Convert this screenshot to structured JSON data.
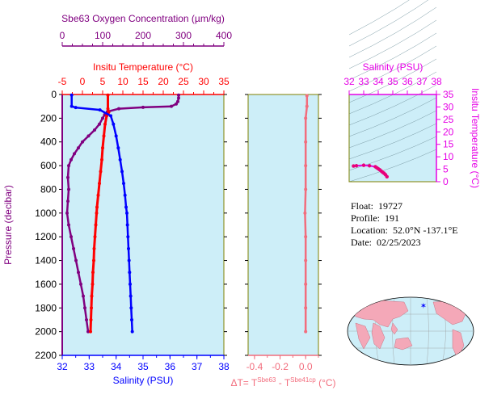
{
  "colors": {
    "panel_bg": "#cdeef8",
    "oxygen": "#800080",
    "temperature": "#ff0000",
    "salinity": "#0000ff",
    "delta": "#f26d7d",
    "ts_axis": "#e600e6",
    "axis": "#000000",
    "frame": "#808000"
  },
  "info": {
    "float_label": "Float:",
    "float_value": "19727",
    "profile_label": "Profile:",
    "profile_value": "191",
    "location_label": "Location:",
    "location_value": "52.0°N  -137.1°E",
    "date_label": "Date:",
    "date_value": "02/25/2023"
  },
  "chart_data": [
    {
      "type": "line",
      "title": "",
      "ylabel": "Pressure (decibar)",
      "ylim": [
        0,
        2200
      ],
      "y_ticks": [
        "0",
        "200",
        "400",
        "600",
        "800",
        "1000",
        "1200",
        "1400",
        "1600",
        "1800",
        "2000",
        "2200"
      ],
      "axes": {
        "oxygen": {
          "label": "Sbe63 Oxygen Concentration (µm/kg)",
          "range": [
            0,
            400
          ],
          "ticks": [
            "0",
            "100",
            "200",
            "300",
            "400"
          ]
        },
        "temperature": {
          "label": "Insitu Temperature (°C)",
          "range": [
            -5,
            35
          ],
          "ticks": [
            "-5",
            "0",
            "5",
            "10",
            "15",
            "20",
            "25",
            "30",
            "35"
          ]
        },
        "salinity": {
          "label": "Salinity (PSU)",
          "range": [
            32,
            38
          ],
          "ticks": [
            "32",
            "33",
            "34",
            "35",
            "36",
            "37",
            "38"
          ]
        }
      },
      "series": [
        {
          "name": "Oxygen",
          "axis": "oxygen",
          "points": [
            [
              288,
              5
            ],
            [
              288,
              30
            ],
            [
              286,
              60
            ],
            [
              282,
              80
            ],
            [
              270,
              100
            ],
            [
              200,
              108
            ],
            [
              140,
              120
            ],
            [
              112,
              145
            ],
            [
              105,
              170
            ],
            [
              100,
              200
            ],
            [
              92,
              250
            ],
            [
              80,
              300
            ],
            [
              65,
              350
            ],
            [
              50,
              400
            ],
            [
              40,
              450
            ],
            [
              30,
              500
            ],
            [
              22,
              550
            ],
            [
              16,
              600
            ],
            [
              14,
              700
            ],
            [
              16,
              800
            ],
            [
              14,
              900
            ],
            [
              12,
              1000
            ],
            [
              16,
              1100
            ],
            [
              22,
              1200
            ],
            [
              28,
              1300
            ],
            [
              34,
              1400
            ],
            [
              40,
              1500
            ],
            [
              46,
              1600
            ],
            [
              52,
              1700
            ],
            [
              56,
              1800
            ],
            [
              60,
              1900
            ],
            [
              64,
              2000
            ]
          ]
        },
        {
          "name": "Temperature",
          "axis": "temperature",
          "points": [
            [
              6.3,
              5
            ],
            [
              6.3,
              120
            ],
            [
              6.5,
              150
            ],
            [
              6.0,
              180
            ],
            [
              5.6,
              250
            ],
            [
              5.3,
              350
            ],
            [
              5.0,
              450
            ],
            [
              4.8,
              550
            ],
            [
              4.5,
              650
            ],
            [
              4.2,
              750
            ],
            [
              3.9,
              850
            ],
            [
              3.6,
              950
            ],
            [
              3.5,
              1000
            ],
            [
              3.3,
              1100
            ],
            [
              3.1,
              1200
            ],
            [
              2.9,
              1300
            ],
            [
              2.8,
              1400
            ],
            [
              2.6,
              1500
            ],
            [
              2.5,
              1600
            ],
            [
              2.3,
              1700
            ],
            [
              2.2,
              1800
            ],
            [
              2.1,
              1900
            ],
            [
              2.0,
              2000
            ]
          ]
        },
        {
          "name": "Salinity",
          "axis": "salinity",
          "points": [
            [
              32.35,
              5
            ],
            [
              32.35,
              100
            ],
            [
              32.5,
              110
            ],
            [
              33.4,
              130
            ],
            [
              33.8,
              180
            ],
            [
              33.9,
              250
            ],
            [
              34.0,
              350
            ],
            [
              34.08,
              450
            ],
            [
              34.15,
              550
            ],
            [
              34.22,
              650
            ],
            [
              34.28,
              750
            ],
            [
              34.33,
              850
            ],
            [
              34.37,
              950
            ],
            [
              34.4,
              1000
            ],
            [
              34.42,
              1100
            ],
            [
              34.44,
              1200
            ],
            [
              34.46,
              1300
            ],
            [
              34.48,
              1400
            ],
            [
              34.5,
              1500
            ],
            [
              34.52,
              1600
            ],
            [
              34.54,
              1700
            ],
            [
              34.56,
              1800
            ],
            [
              34.58,
              1900
            ],
            [
              34.6,
              2000
            ]
          ]
        }
      ]
    },
    {
      "type": "line",
      "xlabel": "ΔT= T^Sbe63 - T^Sbe41cp (°C)",
      "xlabel_parts": {
        "main": "ΔT= T",
        "sup1": "Sbe63",
        "mid": " - T",
        "sup2": "Sbe41cp",
        "end": " (°C)"
      },
      "xlim": [
        -0.45,
        0.1
      ],
      "x_ticks": [
        "-0.4",
        "-0.2",
        "0.0"
      ],
      "ylim": [
        0,
        2200
      ],
      "series": [
        {
          "name": "dT",
          "points": [
            [
              0.01,
              10
            ],
            [
              0.01,
              100
            ],
            [
              0.0,
              200
            ],
            [
              0.0,
              400
            ],
            [
              0.0,
              600
            ],
            [
              0.0,
              800
            ],
            [
              -0.005,
              1000
            ],
            [
              0.0,
              1200
            ],
            [
              0.0,
              1400
            ],
            [
              0.0,
              1600
            ],
            [
              0.0,
              1800
            ],
            [
              0.0,
              2000
            ]
          ]
        }
      ]
    },
    {
      "type": "scatter",
      "xlabel": "Salinity (PSU)",
      "ylabel": "Insitu Temperature (°C)",
      "xlim": [
        32,
        38
      ],
      "ylim": [
        0,
        35
      ],
      "x_ticks": [
        "32",
        "33",
        "34",
        "35",
        "36",
        "37",
        "38"
      ],
      "y_ticks": [
        "0",
        "5",
        "10",
        "15",
        "20",
        "25",
        "30",
        "35"
      ],
      "series": [
        {
          "name": "TS",
          "points": [
            [
              32.3,
              6.3
            ],
            [
              32.5,
              6.4
            ],
            [
              33.0,
              6.6
            ],
            [
              33.4,
              6.4
            ],
            [
              33.8,
              6.0
            ],
            [
              33.9,
              5.6
            ],
            [
              34.0,
              5.2
            ],
            [
              34.1,
              4.8
            ],
            [
              34.2,
              4.3
            ],
            [
              34.3,
              3.8
            ],
            [
              34.4,
              3.4
            ],
            [
              34.5,
              2.8
            ],
            [
              34.6,
              2.0
            ]
          ]
        }
      ]
    }
  ]
}
